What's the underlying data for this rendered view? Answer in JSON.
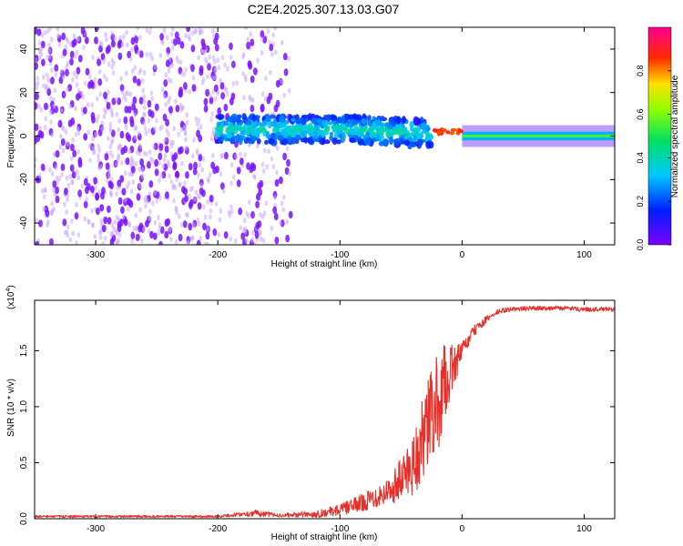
{
  "title": "C2E4.2025.307.13.03.G07",
  "colorbar": {
    "label": "Normalized spectral amplitude",
    "ticks": [
      "0.0",
      "0.2",
      "0.4",
      "0.6",
      "0.8"
    ],
    "range": [
      0,
      1
    ]
  },
  "chart_data": [
    {
      "type": "heatmap",
      "title": "C2E4.2025.307.13.03.G07",
      "xlabel": "Height of straight line (km)",
      "ylabel": "Frequency (Hz)",
      "xlim": [
        -350,
        125
      ],
      "ylim": [
        -50,
        50
      ],
      "xticks": [
        "-300",
        "-200",
        "-100",
        "0",
        "100"
      ],
      "yticks": [
        "-40",
        "-20",
        "0",
        "20",
        "40"
      ],
      "colormap": "rainbow (violet-blue-cyan-green-yellow-red-magenta)",
      "description_segments": [
        {
          "x_range": [
            -350,
            -140
          ],
          "freq_range": [
            -50,
            50
          ],
          "amplitude": 0.05,
          "pattern": "scattered violet speckle noise"
        },
        {
          "x_range": [
            -200,
            -25
          ],
          "freq_center": 3,
          "freq_halfwidth": 6,
          "amplitude": 0.4,
          "pattern": "blobby blue-cyan band"
        },
        {
          "x_range": [
            -25,
            0
          ],
          "freq_center": 2,
          "amplitude": 0.9,
          "pattern": "red peak spots"
        },
        {
          "x_range": [
            0,
            125
          ],
          "freq_center": 0,
          "freq_halfwidth": 2,
          "amplitude": 0.55,
          "pattern": "steady green-yellow line"
        }
      ]
    },
    {
      "type": "line",
      "xlabel": "Height of straight line (km)",
      "ylabel": "SNR (10 * v/v)",
      "y_multiplier": "(x10^4)",
      "y_multiplier_base": "(x10",
      "y_multiplier_exp": "4",
      "y_multiplier_close": ")",
      "xlim": [
        -350,
        125
      ],
      "ylim": [
        0,
        1.95
      ],
      "xticks": [
        "-300",
        "-200",
        "-100",
        "0",
        "100"
      ],
      "yticks": [
        "0.0",
        "0.5",
        "1.0",
        "1.5"
      ],
      "color": "#e8302a",
      "series": [
        {
          "x": [
            -350,
            -300,
            -250,
            -200,
            -180,
            -170,
            -150,
            -120,
            -100,
            -80,
            -60,
            -50,
            -40,
            -30,
            -25,
            -20,
            -15,
            -10,
            0,
            10,
            20,
            30,
            40,
            60,
            80,
            100,
            125
          ],
          "y": [
            0.02,
            0.02,
            0.02,
            0.02,
            0.04,
            0.05,
            0.03,
            0.04,
            0.08,
            0.15,
            0.25,
            0.35,
            0.5,
            0.75,
            0.95,
            1.0,
            1.2,
            1.3,
            1.5,
            1.68,
            1.78,
            1.85,
            1.87,
            1.88,
            1.88,
            1.87,
            1.87
          ],
          "noise": [
            0.01,
            0.01,
            0.01,
            0.01,
            0.02,
            0.03,
            0.015,
            0.03,
            0.05,
            0.08,
            0.12,
            0.2,
            0.3,
            0.4,
            0.45,
            0.45,
            0.35,
            0.25,
            0.08,
            0.05,
            0.03,
            0.025,
            0.02,
            0.02,
            0.02,
            0.02,
            0.02
          ]
        }
      ]
    }
  ]
}
